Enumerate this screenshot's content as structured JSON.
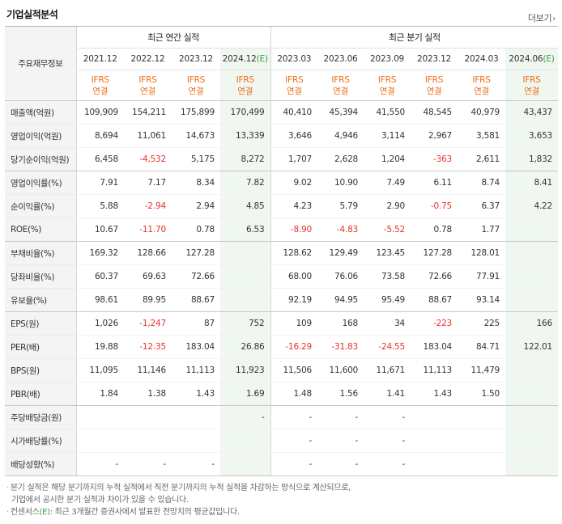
{
  "header": {
    "title": "기업실적분석",
    "more_label": "더보기",
    "more_chevron": "›"
  },
  "table": {
    "corner_label": "주요재무정보",
    "annual_group_label": "최근 연간 실적",
    "quarter_group_label": "최근 분기 실적",
    "periods": [
      {
        "label": "2021.12",
        "estimate": false
      },
      {
        "label": "2022.12",
        "estimate": false
      },
      {
        "label": "2023.12",
        "estimate": false
      },
      {
        "label": "2024.12",
        "estimate": true
      },
      {
        "label": "2023.03",
        "estimate": false
      },
      {
        "label": "2023.06",
        "estimate": false
      },
      {
        "label": "2023.09",
        "estimate": false
      },
      {
        "label": "2023.12",
        "estimate": false
      },
      {
        "label": "2024.03",
        "estimate": false
      },
      {
        "label": "2024.06",
        "estimate": true
      }
    ],
    "estimate_mark": "(E)",
    "ifrs_top": "IFRS",
    "ifrs_bottom": "연결",
    "rows": [
      {
        "label": "매출액(억원)",
        "values": [
          "109,909",
          "154,211",
          "175,899",
          "170,499",
          "40,410",
          "45,394",
          "41,550",
          "48,545",
          "40,979",
          "43,437"
        ],
        "group_end": false
      },
      {
        "label": "영업이익(억원)",
        "values": [
          "8,694",
          "11,061",
          "14,673",
          "13,339",
          "3,646",
          "4,946",
          "3,114",
          "2,967",
          "3,581",
          "3,653"
        ],
        "group_end": false
      },
      {
        "label": "당기순이익(억원)",
        "values": [
          "6,458",
          "-4,532",
          "5,175",
          "8,272",
          "1,707",
          "2,628",
          "1,204",
          "-363",
          "2,611",
          "1,832"
        ],
        "group_end": true
      },
      {
        "label": "영업이익률(%)",
        "values": [
          "7.91",
          "7.17",
          "8.34",
          "7.82",
          "9.02",
          "10.90",
          "7.49",
          "6.11",
          "8.74",
          "8.41"
        ],
        "group_end": false
      },
      {
        "label": "순이익률(%)",
        "values": [
          "5.88",
          "-2.94",
          "2.94",
          "4.85",
          "4.23",
          "5.79",
          "2.90",
          "-0.75",
          "6.37",
          "4.22"
        ],
        "group_end": false
      },
      {
        "label": "ROE(%)",
        "values": [
          "10.67",
          "-11.70",
          "0.78",
          "6.53",
          "-8.90",
          "-4.83",
          "-5.52",
          "0.78",
          "1.77",
          ""
        ],
        "group_end": true
      },
      {
        "label": "부채비율(%)",
        "values": [
          "169.32",
          "128.66",
          "127.28",
          "",
          "128.62",
          "129.49",
          "123.45",
          "127.28",
          "128.01",
          ""
        ],
        "group_end": false
      },
      {
        "label": "당좌비율(%)",
        "values": [
          "60.37",
          "69.63",
          "72.66",
          "",
          "68.00",
          "76.06",
          "73.58",
          "72.66",
          "77.91",
          ""
        ],
        "group_end": false
      },
      {
        "label": "유보율(%)",
        "values": [
          "98.61",
          "89.95",
          "88.67",
          "",
          "92.19",
          "94.95",
          "95.49",
          "88.67",
          "93.14",
          ""
        ],
        "group_end": true
      },
      {
        "label": "EPS(원)",
        "values": [
          "1,026",
          "-1,247",
          "87",
          "752",
          "109",
          "168",
          "34",
          "-223",
          "225",
          "166"
        ],
        "group_end": false
      },
      {
        "label": "PER(배)",
        "values": [
          "19.88",
          "-12.35",
          "183.04",
          "26.86",
          "-16.29",
          "-31.83",
          "-24.55",
          "183.04",
          "84.71",
          "122.01"
        ],
        "group_end": false
      },
      {
        "label": "BPS(원)",
        "values": [
          "11,095",
          "11,146",
          "11,113",
          "11,923",
          "11,506",
          "11,600",
          "11,671",
          "11,113",
          "11,479",
          ""
        ],
        "group_end": false
      },
      {
        "label": "PBR(배)",
        "values": [
          "1.84",
          "1.38",
          "1.43",
          "1.69",
          "1.48",
          "1.56",
          "1.41",
          "1.43",
          "1.50",
          ""
        ],
        "group_end": true
      },
      {
        "label": "주당배당금(원)",
        "values": [
          "",
          "",
          "",
          "-",
          "-",
          "-",
          "-",
          "",
          "",
          ""
        ],
        "group_end": false
      },
      {
        "label": "시가배당률(%)",
        "values": [
          "",
          "",
          "",
          "",
          "-",
          "-",
          "-",
          "",
          "",
          ""
        ],
        "group_end": false
      },
      {
        "label": "배당성향(%)",
        "values": [
          "-",
          "-",
          "-",
          "",
          "-",
          "-",
          "-",
          "",
          "",
          ""
        ],
        "group_end": true
      }
    ]
  },
  "colors": {
    "negative": "#e8322a",
    "ifrs": "#ee6e17",
    "estimate_mark": "#3aa049",
    "estimate_bg": "#f0f7f1",
    "label_bg": "#f4f4f4"
  },
  "footer": {
    "bullet": "·",
    "note1_line1": "분기 실적은 해당 분기까지의 누적 실적에서 직전 분기까지의 누적 실적을 차감하는 방식으로 계산되므로,",
    "note1_line2": "기업에서 공시한 분기 실적과 차이가 있을 수 있습니다.",
    "note2_prefix": "컨센서스",
    "note2_mark": "(E)",
    "note2_suffix": ": 최근 3개월간 증권사에서 발표한 전망치의 평균값입니다."
  }
}
